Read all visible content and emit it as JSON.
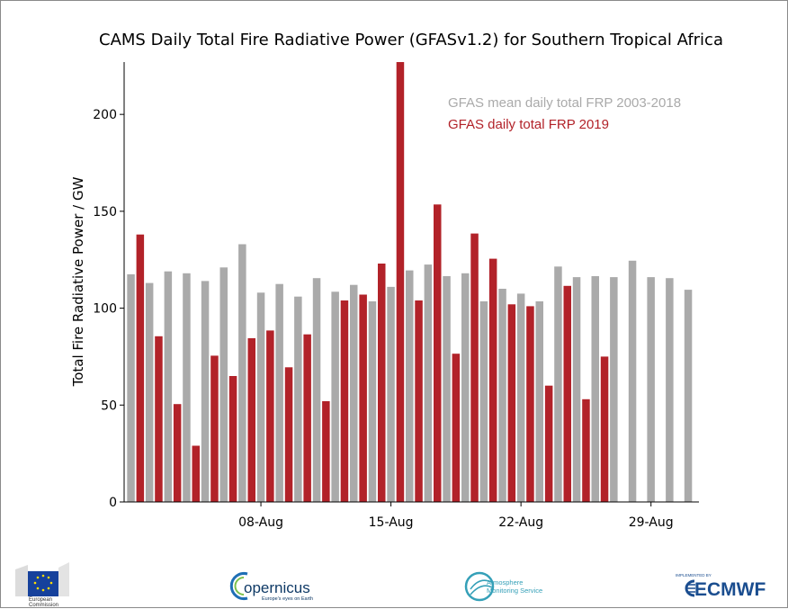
{
  "chart_data": {
    "type": "bar",
    "title": "CAMS Daily Total Fire Radiative Power (GFASv1.2) for Southern Tropical Africa",
    "xlabel": "",
    "ylabel": "Total Fire Radiative Power / GW",
    "ylim": [
      0,
      227
    ],
    "yticks": [
      0,
      50,
      100,
      150,
      200
    ],
    "xticks": [
      {
        "date": "2019-08-08",
        "label": "08-Aug"
      },
      {
        "date": "2019-08-15",
        "label": "15-Aug"
      },
      {
        "date": "2019-08-22",
        "label": "22-Aug"
      },
      {
        "date": "2019-08-29",
        "label": "29-Aug"
      }
    ],
    "categories": [
      "2019-08-01",
      "2019-08-02",
      "2019-08-03",
      "2019-08-04",
      "2019-08-05",
      "2019-08-06",
      "2019-08-07",
      "2019-08-08",
      "2019-08-09",
      "2019-08-10",
      "2019-08-11",
      "2019-08-12",
      "2019-08-13",
      "2019-08-14",
      "2019-08-15",
      "2019-08-16",
      "2019-08-17",
      "2019-08-18",
      "2019-08-19",
      "2019-08-20",
      "2019-08-21",
      "2019-08-22",
      "2019-08-23",
      "2019-08-24",
      "2019-08-25",
      "2019-08-26",
      "2019-08-27",
      "2019-08-28",
      "2019-08-29",
      "2019-08-30",
      "2019-08-31"
    ],
    "series": [
      {
        "name": "GFAS mean daily total FRP 2003-2018",
        "color": "#aaaaaa",
        "values": [
          117.5,
          113,
          119,
          118,
          114,
          121,
          133,
          108,
          112.5,
          106,
          115.5,
          108.5,
          112,
          103.5,
          111,
          119.5,
          122.5,
          116.5,
          118,
          103.5,
          110,
          107.5,
          103.5,
          121.5,
          116,
          116.5,
          116,
          124.5,
          116,
          115.5,
          109.5
        ]
      },
      {
        "name": "GFAS daily total FRP 2019",
        "color": "#b22229",
        "values": [
          138,
          85.5,
          50.5,
          29,
          75.5,
          65,
          84.5,
          88.5,
          69.5,
          86.5,
          52,
          104,
          107,
          123,
          227,
          104,
          153.5,
          76.5,
          138.5,
          125.5,
          102,
          101,
          60,
          111.5,
          53,
          75,
          null,
          null,
          null,
          null,
          null
        ]
      }
    ],
    "legend_position": "top-right",
    "grid": false
  },
  "logos": {
    "eu": {
      "line1": "European",
      "line2": "Commission"
    },
    "copernicus": {
      "name": "opernicus",
      "tagline": "Europe's eyes on Earth"
    },
    "ams": {
      "line1": "Atmosphere",
      "line2": "Monitoring Service"
    },
    "ecmwf": {
      "implemented_by": "IMPLEMENTED BY",
      "name": "ECMWF"
    }
  }
}
